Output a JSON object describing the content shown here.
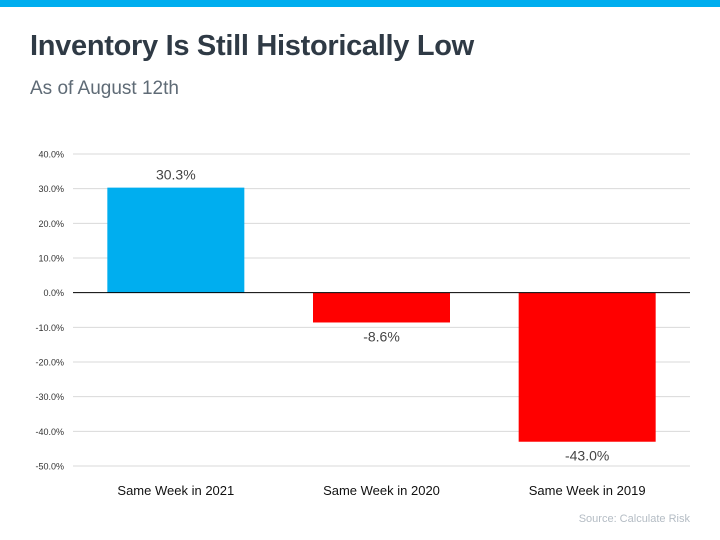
{
  "header": {
    "title": "Inventory Is Still Historically Low",
    "subtitle": "As of August 12th"
  },
  "source": "Source: Calculate Risk",
  "colors": {
    "top_bar": "#00aeef",
    "positive": "#00aeef",
    "negative": "#ff0000",
    "grid": "#d9d9d9",
    "zero_line": "#000000",
    "tick_text": "#333333",
    "label_text": "#444444"
  },
  "chart_data": {
    "type": "bar",
    "categories": [
      "Same Week in 2021",
      "Same Week in 2020",
      "Same Week in 2019"
    ],
    "values": [
      30.3,
      -8.6,
      -43.0
    ],
    "value_labels": [
      "30.3%",
      "-8.6%",
      "-43.0%"
    ],
    "yticks": [
      40,
      30,
      20,
      10,
      0,
      -10,
      -20,
      -30,
      -40,
      -50
    ],
    "ytick_labels": [
      "40.0%",
      "30.0%",
      "20.0%",
      "10.0%",
      "0.0%",
      "-10.0%",
      "-20.0%",
      "-30.0%",
      "-40.0%",
      "-50.0%"
    ],
    "ylim": [
      -50,
      40
    ],
    "grid": true,
    "legend": "none"
  }
}
